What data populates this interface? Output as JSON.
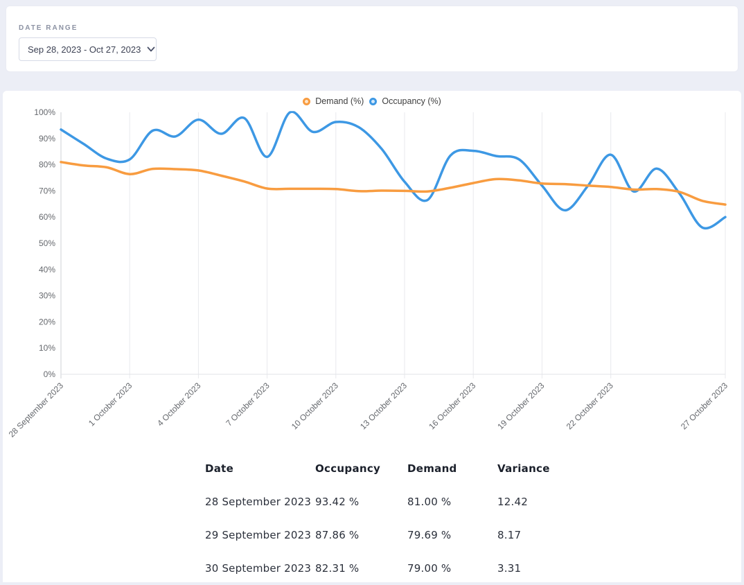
{
  "page": {
    "background_color": "#eceef6",
    "card_color": "#ffffff"
  },
  "filters": {
    "label": "DATE RANGE",
    "value": "Sep 28, 2023 - Oct 27, 2023"
  },
  "chart_data": {
    "type": "line",
    "x": [
      "28 September 2023",
      "29 September 2023",
      "30 September 2023",
      "1 October 2023",
      "2 October 2023",
      "3 October 2023",
      "4 October 2023",
      "5 October 2023",
      "6 October 2023",
      "7 October 2023",
      "8 October 2023",
      "9 October 2023",
      "10 October 2023",
      "11 October 2023",
      "12 October 2023",
      "13 October 2023",
      "14 October 2023",
      "15 October 2023",
      "16 October 2023",
      "17 October 2023",
      "18 October 2023",
      "19 October 2023",
      "20 October 2023",
      "21 October 2023",
      "22 October 2023",
      "23 October 2023",
      "24 October 2023",
      "25 October 2023",
      "26 October 2023",
      "27 October 2023"
    ],
    "tick_indices": [
      0,
      3,
      6,
      9,
      12,
      15,
      18,
      21,
      24,
      29
    ],
    "series": [
      {
        "name": "Demand (%)",
        "color": "#F89C40",
        "fill": "#FCE5CB",
        "values": [
          81.0,
          79.69,
          79.0,
          76.4,
          78.4,
          78.3,
          77.8,
          75.8,
          73.6,
          70.9,
          70.8,
          70.8,
          70.7,
          69.9,
          70.1,
          70.0,
          69.8,
          71.2,
          73.0,
          74.5,
          74.0,
          72.8,
          72.6,
          72.0,
          71.5,
          70.5,
          70.7,
          69.6,
          66.2,
          64.8
        ]
      },
      {
        "name": "Occupancy (%)",
        "color": "#3D98E4",
        "fill": "#D3E8FA",
        "values": [
          93.42,
          87.86,
          82.31,
          82.0,
          93.0,
          90.8,
          97.2,
          91.8,
          97.8,
          83.0,
          100.0,
          92.5,
          96.3,
          94.3,
          86.0,
          73.5,
          66.5,
          83.5,
          85.3,
          83.3,
          82.0,
          72.0,
          62.6,
          71.9,
          83.8,
          69.8,
          78.5,
          69.0,
          56.0,
          60.0
        ]
      }
    ],
    "ylim": [
      0,
      100
    ],
    "ytick_step": 10,
    "ytick_suffix": "%",
    "grid": "vertical-only",
    "legend_position": "top-center",
    "axis_text_color": "#65686d",
    "grid_color": "#e8e9ed",
    "axis_line_color": "#cdd0d6"
  },
  "table": {
    "headers": [
      "Date",
      "Occupancy",
      "Demand",
      "Variance"
    ],
    "rows": [
      [
        "28 September 2023",
        "93.42 %",
        "81.00 %",
        "12.42"
      ],
      [
        "29 September 2023",
        "87.86 %",
        "79.69 %",
        "8.17"
      ],
      [
        "30 September 2023",
        "82.31 %",
        "79.00 %",
        "3.31"
      ]
    ]
  }
}
